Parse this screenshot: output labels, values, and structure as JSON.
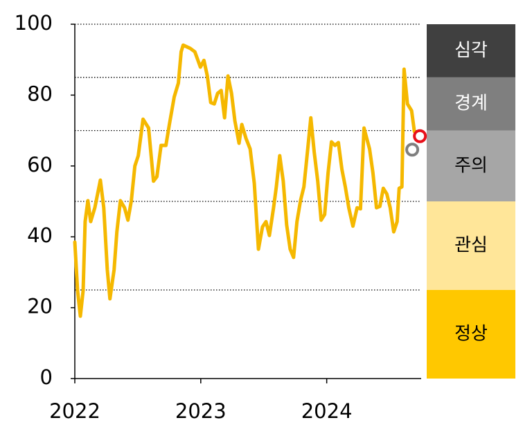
{
  "chart_data": {
    "type": "line",
    "x": [
      2022.0,
      2022.022,
      2022.044,
      2022.066,
      2022.082,
      2022.104,
      2022.126,
      2022.159,
      2022.203,
      2022.23,
      2022.258,
      2022.279,
      2022.312,
      2022.334,
      2022.362,
      2022.395,
      2022.422,
      2022.449,
      2022.477,
      2022.504,
      2022.542,
      2022.586,
      2022.625,
      2022.652,
      2022.685,
      2022.723,
      2022.751,
      2022.789,
      2022.822,
      2022.844,
      2022.86,
      2022.915,
      2022.953,
      2022.997,
      2023.025,
      2023.052,
      2023.079,
      2023.107,
      2023.134,
      2023.162,
      2023.189,
      2023.216,
      2023.244,
      2023.271,
      2023.304,
      2023.326,
      2023.359,
      2023.392,
      2023.425,
      2023.458,
      2023.49,
      2023.518,
      2023.545,
      2023.578,
      2023.6,
      2023.627,
      2023.655,
      2023.682,
      2023.71,
      2023.737,
      2023.764,
      2023.792,
      2023.819,
      2023.847,
      2023.874,
      2023.901,
      2023.929,
      2023.956,
      2023.984,
      2024.011,
      2024.038,
      2024.066,
      2024.093,
      2024.121,
      2024.148,
      2024.175,
      2024.208,
      2024.241,
      2024.268,
      2024.296,
      2024.34,
      2024.367,
      2024.395,
      2024.422,
      2024.449,
      2024.477,
      2024.504,
      2024.532,
      2024.559,
      2024.575,
      2024.597,
      2024.614,
      2024.641,
      2024.674,
      2024.696
    ],
    "values": [
      38.5,
      24.8,
      17.6,
      24.8,
      44.3,
      50.2,
      44.3,
      48.2,
      56,
      48.2,
      30.7,
      22.5,
      30.7,
      41.4,
      50.2,
      48.2,
      44.7,
      50.2,
      60,
      62.9,
      73.2,
      70.7,
      55.7,
      57,
      65.8,
      65.8,
      71.7,
      79.5,
      83.4,
      92.2,
      94.1,
      93.2,
      92.2,
      87.9,
      89.8,
      85.4,
      77.9,
      77.5,
      80.5,
      81.3,
      73.6,
      85.4,
      80.5,
      72.7,
      66.4,
      71.7,
      67.8,
      64.8,
      55.1,
      36.5,
      42.8,
      44.3,
      40.4,
      48.2,
      54.1,
      62.9,
      55.7,
      43.4,
      36.5,
      34.2,
      44.3,
      50.2,
      54.1,
      63.9,
      73.6,
      63.9,
      55.7,
      44.7,
      46.3,
      58,
      66.8,
      65.8,
      66.6,
      59,
      54.1,
      48.2,
      43,
      48.2,
      47.9,
      70.7,
      64.8,
      58,
      48.2,
      48.6,
      53.7,
      52.1,
      48.2,
      41.4,
      44.3,
      53.7,
      54.1,
      87.3,
      77.5,
      75.6,
      69.7
    ],
    "color": "#f5b800",
    "markers": [
      {
        "x": 2024.679,
        "value": 64.6,
        "color": "#7f7f7f"
      },
      {
        "x": 2024.74,
        "value": 68.4,
        "color": "#e8101a"
      }
    ],
    "xlim": [
      2022,
      2024.75
    ],
    "xticks": [
      2022,
      2023,
      2024
    ],
    "ylim": [
      0,
      100
    ],
    "yticks": [
      0,
      20,
      40,
      60,
      80,
      100
    ],
    "hlines": [
      25,
      50,
      70,
      85,
      100
    ],
    "bands": [
      {
        "label": "정상",
        "from": 0,
        "to": 25,
        "color": "#ffc800",
        "text_color": "#000000"
      },
      {
        "label": "관심",
        "from": 25,
        "to": 50,
        "color": "#ffe699",
        "text_color": "#000000"
      },
      {
        "label": "주의",
        "from": 50,
        "to": 70,
        "color": "#a6a6a6",
        "text_color": "#000000"
      },
      {
        "label": "경계",
        "from": 70,
        "to": 85,
        "color": "#7f7f7f",
        "text_color": "#ffffff"
      },
      {
        "label": "심각",
        "from": 85,
        "to": 100,
        "color": "#404040",
        "text_color": "#ffffff"
      }
    ]
  }
}
